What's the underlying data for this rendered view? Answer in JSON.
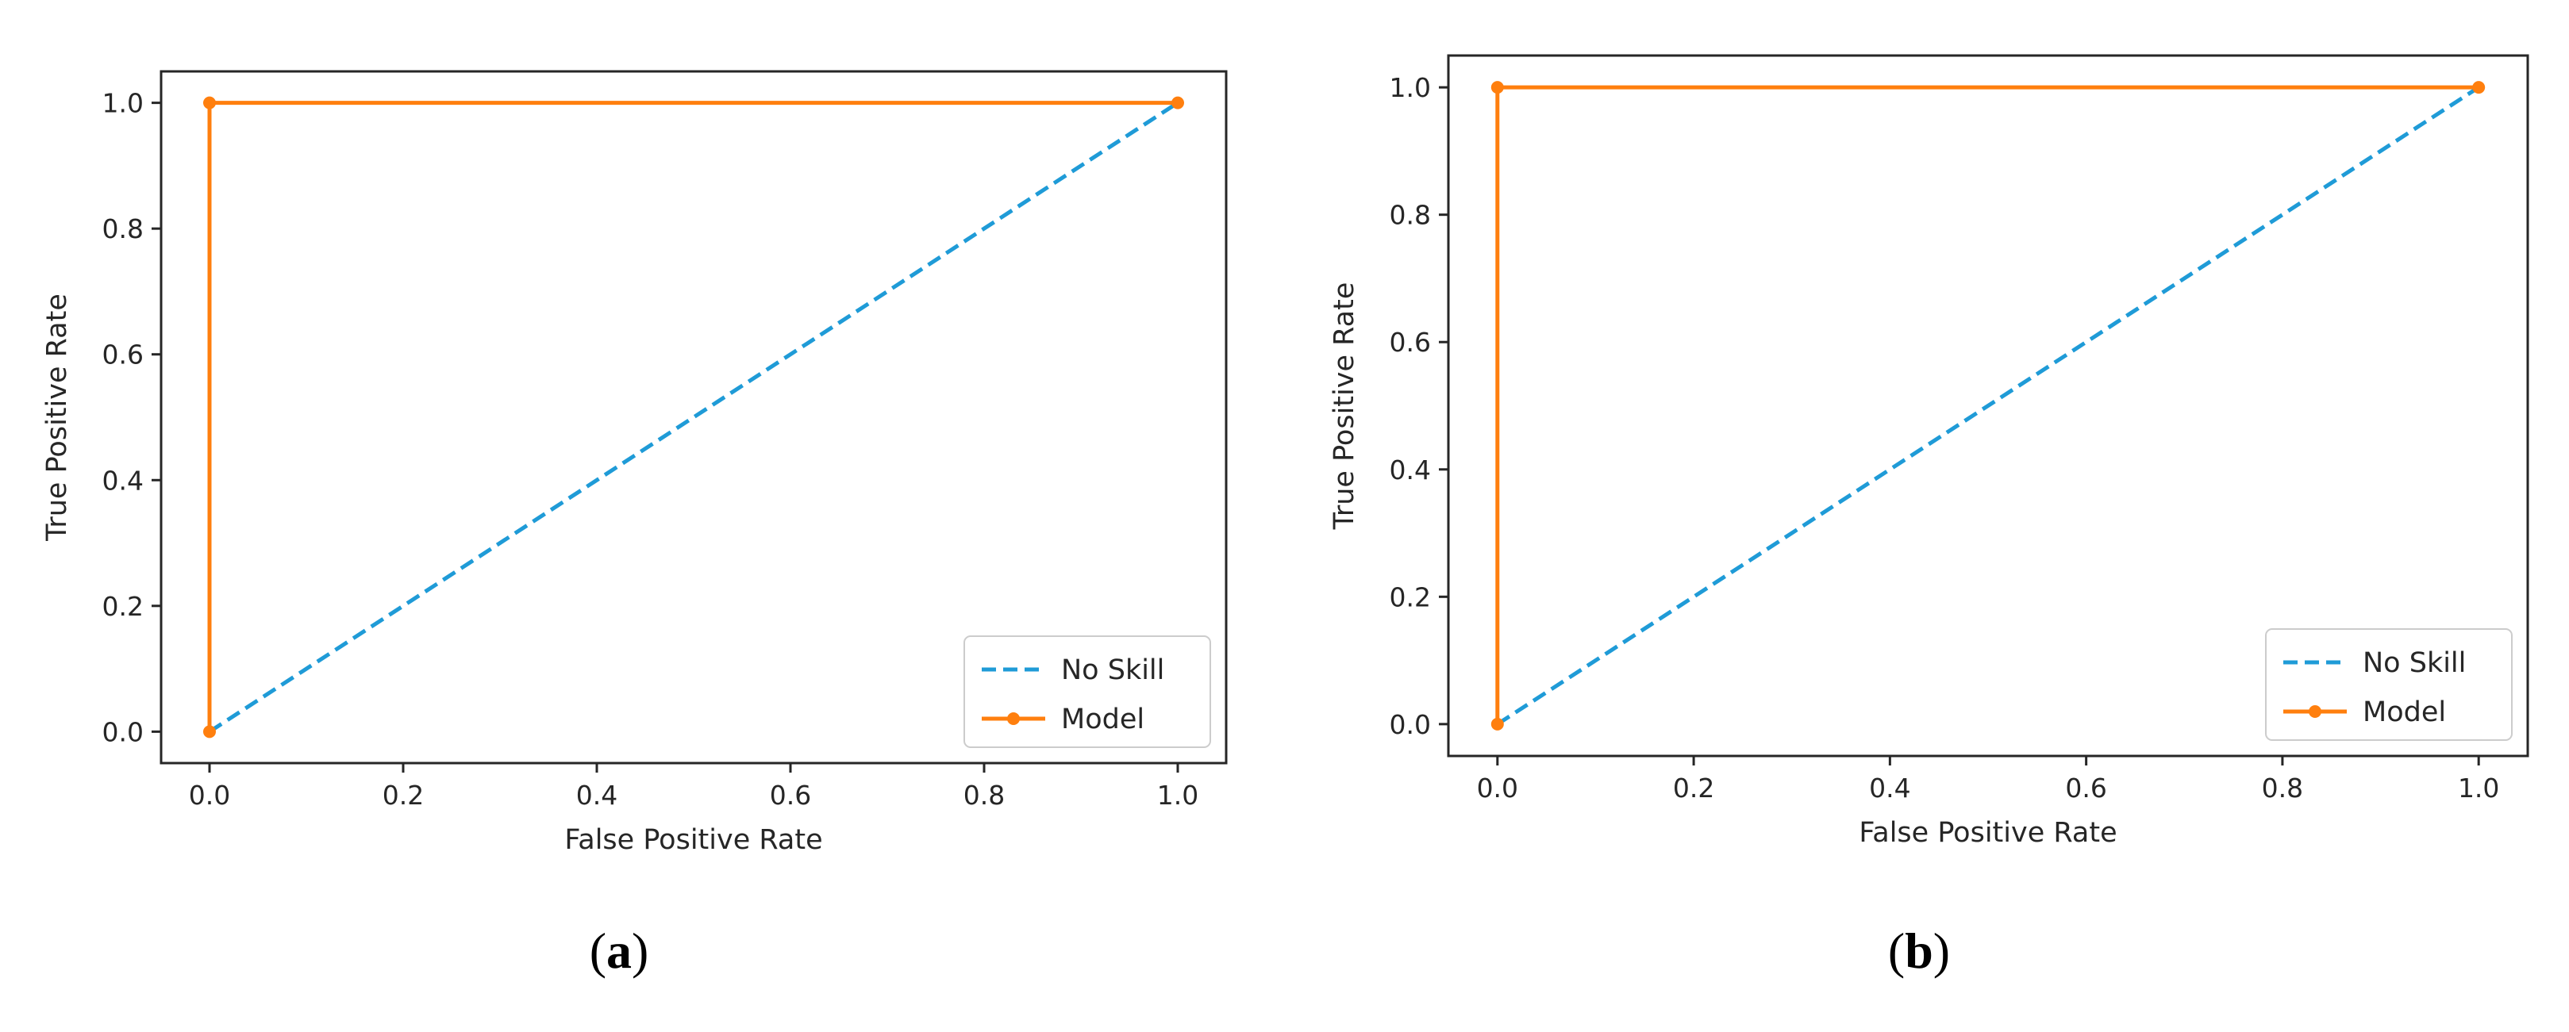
{
  "chart_data": [
    {
      "type": "line",
      "panel_label": "(a)",
      "panel_letter": "a",
      "xlabel": "False Positive Rate",
      "ylabel": "True Positive Rate",
      "xlim": [
        -0.05,
        1.05
      ],
      "ylim": [
        -0.05,
        1.05
      ],
      "x_ticks": [
        "0.0",
        "0.2",
        "0.4",
        "0.6",
        "0.8",
        "1.0"
      ],
      "y_ticks": [
        "0.0",
        "0.2",
        "0.4",
        "0.6",
        "0.8",
        "1.0"
      ],
      "grid": false,
      "legend_position": "lower-right",
      "series": [
        {
          "name": "No Skill",
          "style": "dashed",
          "color": "#1f9bd7",
          "x": [
            0,
            1
          ],
          "y": [
            0,
            1
          ]
        },
        {
          "name": "Model",
          "style": "solid-marker",
          "color": "#ff7f0e",
          "x": [
            0,
            0,
            1
          ],
          "y": [
            0,
            1,
            1
          ]
        }
      ]
    },
    {
      "type": "line",
      "panel_label": "(b)",
      "panel_letter": "b",
      "xlabel": "False Positive Rate",
      "ylabel": "True Positive Rate",
      "xlim": [
        -0.05,
        1.05
      ],
      "ylim": [
        -0.05,
        1.05
      ],
      "x_ticks": [
        "0.0",
        "0.2",
        "0.4",
        "0.6",
        "0.8",
        "1.0"
      ],
      "y_ticks": [
        "0.0",
        "0.2",
        "0.4",
        "0.6",
        "0.8",
        "1.0"
      ],
      "grid": false,
      "legend_position": "lower-right",
      "series": [
        {
          "name": "No Skill",
          "style": "dashed",
          "color": "#1f9bd7",
          "x": [
            0,
            1
          ],
          "y": [
            0,
            1
          ]
        },
        {
          "name": "Model",
          "style": "solid-marker",
          "color": "#ff7f0e",
          "x": [
            0,
            0,
            1
          ],
          "y": [
            0,
            1,
            1
          ]
        }
      ]
    }
  ]
}
